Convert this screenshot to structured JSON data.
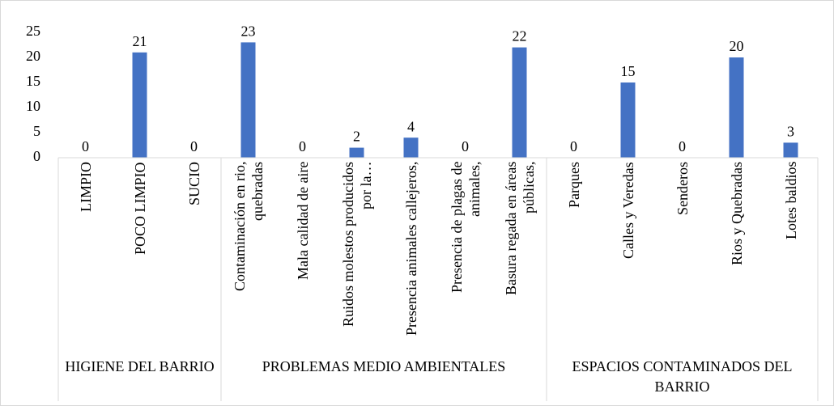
{
  "chart_data": {
    "type": "bar",
    "categories": [
      "LIMPIO",
      "POCO LIMPIO",
      "SUCIO",
      "Contaminación en rio, quebradas",
      "Mala calidad de aire",
      "Ruidos molestos producidos por la…",
      "Presencia animales callejeros,",
      "Presencia de plagas de animales,",
      "Basura regada en áreas públicas,",
      "Parques",
      "Calles y Veredas",
      "Senderos",
      "Rios y Quebradas",
      "Lotes baldios"
    ],
    "groups": [
      {
        "name": "HIGIENE  DEL BARRIO",
        "count": 3
      },
      {
        "name": "PROBLEMAS MEDIO AMBIENTALES",
        "count": 6
      },
      {
        "name": "ESPACIOS CONTAMINADOS DEL BARRIO",
        "count": 5
      }
    ],
    "values": [
      0,
      21,
      0,
      23,
      0,
      2,
      4,
      0,
      22,
      0,
      15,
      0,
      20,
      3
    ],
    "color": "#4472c4",
    "ylim": [
      0,
      25
    ],
    "yticks": [
      0,
      5,
      10,
      15,
      20,
      25
    ],
    "grid": false
  }
}
